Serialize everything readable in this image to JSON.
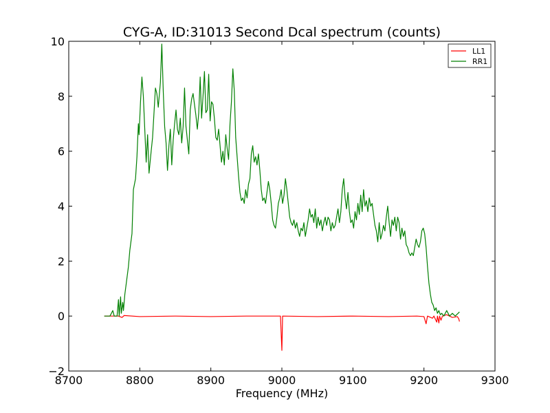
{
  "chart_data": {
    "type": "line",
    "title": "CYG-A, ID:31013 Second Dcal spectrum (counts)",
    "xlabel": "Frequency (MHz)",
    "ylabel": "",
    "xlim": [
      8700,
      9300
    ],
    "ylim": [
      -2,
      10
    ],
    "x_ticks": [
      8700,
      8800,
      8900,
      9000,
      9100,
      9200,
      9300
    ],
    "y_ticks": [
      -2,
      0,
      2,
      4,
      6,
      8,
      10
    ],
    "x_tick_labels": [
      "8700",
      "8800",
      "8900",
      "9000",
      "9100",
      "9200",
      "9300"
    ],
    "y_tick_labels": [
      "−2",
      "0",
      "2",
      "4",
      "6",
      "8",
      "10"
    ],
    "grid": false,
    "legend": "top-right",
    "series": [
      {
        "name": "LL1",
        "color": "#ff0000",
        "points": [
          [
            8750,
            0
          ],
          [
            8770,
            0
          ],
          [
            8775,
            -0.05
          ],
          [
            8778,
            0.02
          ],
          [
            8800,
            -0.02
          ],
          [
            8850,
            0
          ],
          [
            8900,
            -0.02
          ],
          [
            8950,
            0
          ],
          [
            8998,
            0
          ],
          [
            9000,
            -1.25
          ],
          [
            9001,
            0
          ],
          [
            9050,
            -0.02
          ],
          [
            9100,
            0
          ],
          [
            9150,
            -0.02
          ],
          [
            9190,
            0
          ],
          [
            9200,
            -0.02
          ],
          [
            9203,
            -0.28
          ],
          [
            9205,
            0
          ],
          [
            9212,
            -0.08
          ],
          [
            9214,
            0
          ],
          [
            9218,
            -0.22
          ],
          [
            9219,
            0
          ],
          [
            9221,
            -0.25
          ],
          [
            9222,
            0
          ],
          [
            9224,
            -0.15
          ],
          [
            9226,
            0
          ],
          [
            9232,
            0.05
          ],
          [
            9240,
            -0.05
          ],
          [
            9247,
            -0.02
          ],
          [
            9249,
            -0.1
          ],
          [
            9250,
            -0.2
          ]
        ]
      },
      {
        "name": "RR1",
        "color": "#007f00",
        "points": [
          [
            8750,
            0
          ],
          [
            8758,
            0
          ],
          [
            8762,
            0.2
          ],
          [
            8764,
            0
          ],
          [
            8768,
            0
          ],
          [
            8770,
            0.6
          ],
          [
            8771,
            0
          ],
          [
            8773,
            0.7
          ],
          [
            8774,
            0.1
          ],
          [
            8776,
            0.5
          ],
          [
            8777,
            0.2
          ],
          [
            8779,
            0.8
          ],
          [
            8781,
            1.2
          ],
          [
            8784,
            1.8
          ],
          [
            8786,
            2.4
          ],
          [
            8789,
            3
          ],
          [
            8791,
            4.6
          ],
          [
            8794,
            5
          ],
          [
            8796,
            5.8
          ],
          [
            8798,
            7
          ],
          [
            8799,
            6.6
          ],
          [
            8801,
            7.8
          ],
          [
            8803,
            8.7
          ],
          [
            8805,
            8
          ],
          [
            8807,
            6.8
          ],
          [
            8809,
            5.6
          ],
          [
            8811,
            6.6
          ],
          [
            8813,
            5.2
          ],
          [
            8816,
            6
          ],
          [
            8818,
            6.5
          ],
          [
            8820,
            7.4
          ],
          [
            8822,
            8.3
          ],
          [
            8824,
            8.1
          ],
          [
            8826,
            7.6
          ],
          [
            8829,
            8.5
          ],
          [
            8831,
            9.9
          ],
          [
            8833,
            8.2
          ],
          [
            8835,
            6.9
          ],
          [
            8837,
            6.3
          ],
          [
            8839,
            5.3
          ],
          [
            8841,
            6.2
          ],
          [
            8843,
            6.8
          ],
          [
            8845,
            5.5
          ],
          [
            8847,
            6.4
          ],
          [
            8849,
            7
          ],
          [
            8851,
            7.5
          ],
          [
            8853,
            6.8
          ],
          [
            8855,
            6.6
          ],
          [
            8857,
            7.2
          ],
          [
            8859,
            6.3
          ],
          [
            8861,
            6.9
          ],
          [
            8863,
            8.3
          ],
          [
            8865,
            6.9
          ],
          [
            8867,
            6.4
          ],
          [
            8869,
            5.9
          ],
          [
            8871,
            7.5
          ],
          [
            8873,
            7.9
          ],
          [
            8875,
            8.1
          ],
          [
            8877,
            7.7
          ],
          [
            8879,
            7.3
          ],
          [
            8881,
            6.8
          ],
          [
            8883,
            7.4
          ],
          [
            8885,
            8.7
          ],
          [
            8887,
            7.2
          ],
          [
            8889,
            8
          ],
          [
            8891,
            8.9
          ],
          [
            8893,
            7.4
          ],
          [
            8895,
            7.5
          ],
          [
            8897,
            8.8
          ],
          [
            8899,
            7.1
          ],
          [
            8901,
            7.8
          ],
          [
            8903,
            7.7
          ],
          [
            8905,
            7.2
          ],
          [
            8907,
            6.5
          ],
          [
            8909,
            6.4
          ],
          [
            8911,
            6.8
          ],
          [
            8913,
            6.2
          ],
          [
            8915,
            5.6
          ],
          [
            8917,
            6
          ],
          [
            8919,
            5.5
          ],
          [
            8921,
            6.6
          ],
          [
            8923,
            6.1
          ],
          [
            8925,
            5.7
          ],
          [
            8927,
            7
          ],
          [
            8929,
            7.8
          ],
          [
            8931,
            9
          ],
          [
            8933,
            8.2
          ],
          [
            8935,
            6.5
          ],
          [
            8937,
            5.8
          ],
          [
            8939,
            5.1
          ],
          [
            8941,
            4.5
          ],
          [
            8943,
            4.2
          ],
          [
            8945,
            4.3
          ],
          [
            8947,
            4.1
          ],
          [
            8949,
            4.6
          ],
          [
            8951,
            4.3
          ],
          [
            8953,
            4.8
          ],
          [
            8955,
            5
          ],
          [
            8957,
            5.9
          ],
          [
            8959,
            6.2
          ],
          [
            8961,
            5.6
          ],
          [
            8963,
            5.8
          ],
          [
            8965,
            5.5
          ],
          [
            8967,
            5.9
          ],
          [
            8969,
            5.3
          ],
          [
            8971,
            4.6
          ],
          [
            8973,
            4.2
          ],
          [
            8975,
            4.3
          ],
          [
            8977,
            4.1
          ],
          [
            8979,
            4.5
          ],
          [
            8981,
            4.9
          ],
          [
            8983,
            4.6
          ],
          [
            8985,
            4.1
          ],
          [
            8987,
            3.5
          ],
          [
            8989,
            3.3
          ],
          [
            8991,
            3.2
          ],
          [
            8993,
            3.6
          ],
          [
            8995,
            4.1
          ],
          [
            8997,
            4.3
          ],
          [
            8999,
            4.6
          ],
          [
            9001,
            4.1
          ],
          [
            9003,
            4.4
          ],
          [
            9005,
            5
          ],
          [
            9007,
            4.6
          ],
          [
            9009,
            4.1
          ],
          [
            9011,
            3.6
          ],
          [
            9013,
            3.4
          ],
          [
            9015,
            3.3
          ],
          [
            9017,
            3.5
          ],
          [
            9019,
            3.2
          ],
          [
            9021,
            3.4
          ],
          [
            9023,
            3.1
          ],
          [
            9025,
            2.9
          ],
          [
            9027,
            3.2
          ],
          [
            9029,
            3.1
          ],
          [
            9031,
            3.4
          ],
          [
            9033,
            2.9
          ],
          [
            9035,
            3.2
          ],
          [
            9037,
            3.5
          ],
          [
            9039,
            3.9
          ],
          [
            9041,
            3.6
          ],
          [
            9043,
            3.7
          ],
          [
            9045,
            3.4
          ],
          [
            9047,
            3.9
          ],
          [
            9049,
            3.2
          ],
          [
            9051,
            3.6
          ],
          [
            9053,
            3.3
          ],
          [
            9055,
            3.5
          ],
          [
            9057,
            3.1
          ],
          [
            9059,
            3.4
          ],
          [
            9061,
            3.6
          ],
          [
            9063,
            3.3
          ],
          [
            9065,
            3.6
          ],
          [
            9067,
            3.5
          ],
          [
            9069,
            3.1
          ],
          [
            9071,
            3.4
          ],
          [
            9073,
            3.2
          ],
          [
            9075,
            3.3
          ],
          [
            9077,
            3.6
          ],
          [
            9079,
            3.9
          ],
          [
            9081,
            3.4
          ],
          [
            9083,
            3.8
          ],
          [
            9085,
            4.6
          ],
          [
            9087,
            5
          ],
          [
            9089,
            4.3
          ],
          [
            9091,
            3.9
          ],
          [
            9093,
            4.5
          ],
          [
            9095,
            3.8
          ],
          [
            9097,
            3.4
          ],
          [
            9099,
            3.5
          ],
          [
            9101,
            3.2
          ],
          [
            9103,
            3.8
          ],
          [
            9105,
            3.5
          ],
          [
            9107,
            4.1
          ],
          [
            9109,
            3.7
          ],
          [
            9111,
            4.4
          ],
          [
            9113,
            3.8
          ],
          [
            9115,
            4.6
          ],
          [
            9117,
            4
          ],
          [
            9119,
            4.2
          ],
          [
            9121,
            3.8
          ],
          [
            9123,
            4.3
          ],
          [
            9125,
            4
          ],
          [
            9127,
            4.1
          ],
          [
            9129,
            3.7
          ],
          [
            9131,
            3.3
          ],
          [
            9133,
            3.1
          ],
          [
            9135,
            2.7
          ],
          [
            9137,
            3.4
          ],
          [
            9139,
            2.8
          ],
          [
            9141,
            3
          ],
          [
            9143,
            3.3
          ],
          [
            9145,
            3.1
          ],
          [
            9147,
            3.6
          ],
          [
            9149,
            4
          ],
          [
            9151,
            3.4
          ],
          [
            9153,
            2.9
          ],
          [
            9155,
            3.5
          ],
          [
            9157,
            3.3
          ],
          [
            9159,
            3.6
          ],
          [
            9161,
            3.1
          ],
          [
            9163,
            3.6
          ],
          [
            9165,
            3.4
          ],
          [
            9167,
            2.8
          ],
          [
            9169,
            3.2
          ],
          [
            9171,
            2.9
          ],
          [
            9173,
            3.1
          ],
          [
            9175,
            2.6
          ],
          [
            9177,
            2.5
          ],
          [
            9179,
            2.3
          ],
          [
            9181,
            2.2
          ],
          [
            9183,
            2.3
          ],
          [
            9185,
            2.2
          ],
          [
            9187,
            2.5
          ],
          [
            9189,
            2.8
          ],
          [
            9191,
            2.6
          ],
          [
            9193,
            2.5
          ],
          [
            9195,
            2.7
          ],
          [
            9197,
            3.1
          ],
          [
            9199,
            3.2
          ],
          [
            9201,
            3
          ],
          [
            9203,
            2.5
          ],
          [
            9205,
            1.8
          ],
          [
            9207,
            1.2
          ],
          [
            9209,
            0.8
          ],
          [
            9211,
            0.5
          ],
          [
            9213,
            0.4
          ],
          [
            9215,
            0.2
          ],
          [
            9217,
            0.3
          ],
          [
            9219,
            0.1
          ],
          [
            9221,
            0.2
          ],
          [
            9223,
            0.05
          ],
          [
            9225,
            0.1
          ],
          [
            9228,
            0
          ],
          [
            9232,
            0.2
          ],
          [
            9236,
            0
          ],
          [
            9240,
            0.1
          ],
          [
            9244,
            0
          ],
          [
            9248,
            0.1
          ],
          [
            9250,
            0.15
          ]
        ]
      }
    ]
  }
}
